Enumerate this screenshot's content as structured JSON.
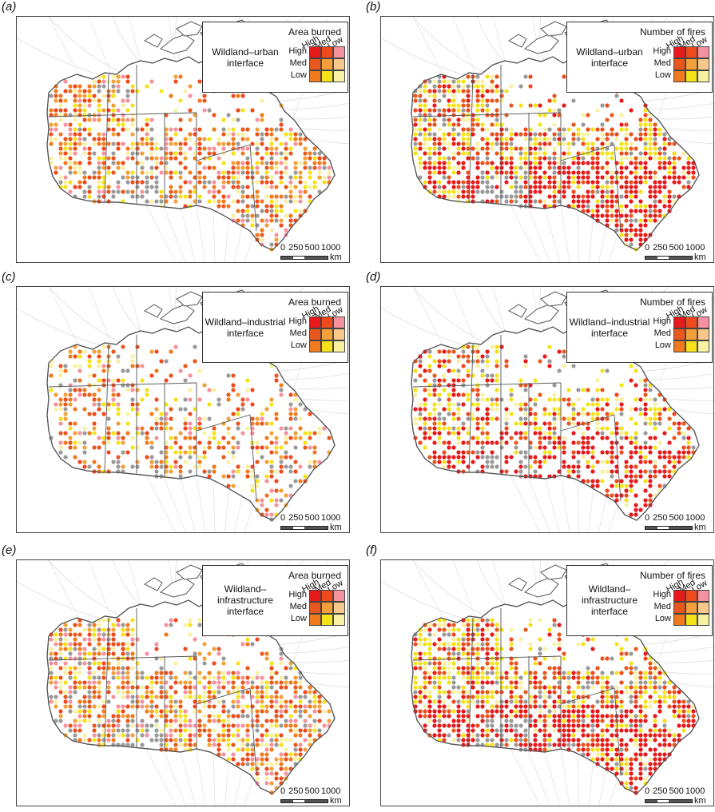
{
  "colors": {
    "high_high": "#e8191b",
    "high_med": "#ef4a1e",
    "high_low": "#f6929f",
    "med_high": "#e8581e",
    "med_med": "#f4a03a",
    "med_low": "#f7c88a",
    "low_high": "#f07a1e",
    "low_med": "#f4e21b",
    "low_low": "#f8f1a2",
    "nodata": "#9a9a9a",
    "land": "#ffffff",
    "coast": "#555555"
  },
  "legend_common": {
    "col_high": "High",
    "col_med": "Med",
    "col_low": "Low",
    "row_high": "High",
    "row_med": "Med",
    "row_low": "Low"
  },
  "scalebar": {
    "tick0": "0",
    "tick1": "250",
    "tick2": "500",
    "tick3": "1000",
    "unit": "km"
  },
  "panels": [
    {
      "label": "(a)",
      "metric": "Area burned",
      "interface": "Wildland–urban\ninterface"
    },
    {
      "label": "(b)",
      "metric": "Number of fires",
      "interface": "Wildland–urban\ninterface"
    },
    {
      "label": "(c)",
      "metric": "Area burned",
      "interface": "Wildland–industrial\ninterface"
    },
    {
      "label": "(d)",
      "metric": "Number of fires",
      "interface": "Wildland–industrial\ninterface"
    },
    {
      "label": "(e)",
      "metric": "Area burned",
      "interface": "Wildland–\ninfrastructure\ninterface"
    },
    {
      "label": "(f)",
      "metric": "Number of fires",
      "interface": "Wildland–\ninfrastructure\ninterface"
    }
  ]
}
